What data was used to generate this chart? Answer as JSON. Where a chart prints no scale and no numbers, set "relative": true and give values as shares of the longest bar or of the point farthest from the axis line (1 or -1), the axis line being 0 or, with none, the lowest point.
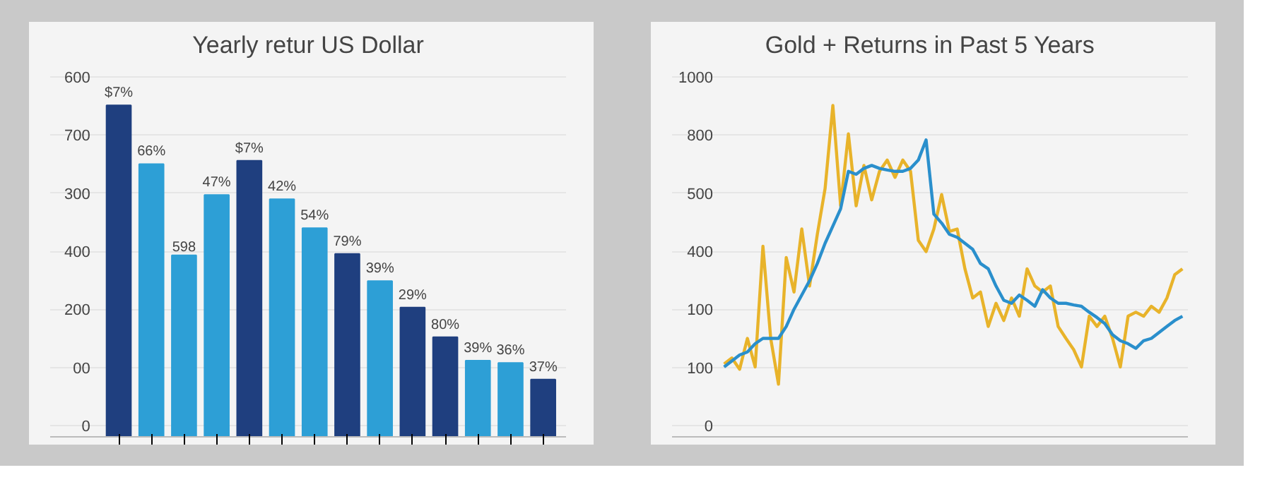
{
  "chart_data": [
    {
      "type": "bar",
      "title": "Yearly retur US Dollar",
      "relative": true,
      "categories": [
        null,
        null,
        null,
        null,
        null,
        null,
        null,
        null,
        null,
        null,
        null,
        null,
        null,
        null
      ],
      "values": [
        1,
        0.823,
        0.548,
        0.73,
        0.833,
        0.717,
        0.63,
        0.552,
        0.47,
        0.39,
        0.301,
        0.23,
        0.223,
        0.173
      ],
      "colors": [
        "#1f3f7f",
        "#2d9fd6",
        "#2d9fd6",
        "#2d9fd6",
        "#1f3f7f",
        "#2d9fd6",
        "#2d9fd6",
        "#1f3f7f",
        "#2d9fd6",
        "#1f3f7f",
        "#1f3f7f",
        "#2d9fd6",
        "#2d9fd6",
        "#1f3f7f"
      ],
      "annotations": [
        "600",
        "700",
        "300",
        "400",
        "200",
        "00",
        "0",
        "$7%",
        "66%",
        "598",
        "47%",
        "$7%",
        "42%",
        "54%",
        "79%",
        "39%",
        "29%",
        "80%",
        "39%",
        "36%",
        "37%"
      ],
      "grid": "y"
    },
    {
      "type": "line",
      "title": "Gold + Returns in Past 5 Years",
      "relative": true,
      "categories": [
        null,
        null,
        null,
        null,
        null,
        null,
        null,
        null,
        null,
        null,
        null,
        null,
        null,
        null,
        null,
        null,
        null,
        null,
        null,
        null,
        null,
        null,
        null,
        null,
        null,
        null,
        null,
        null,
        null,
        null,
        null,
        null,
        null,
        null,
        null,
        null,
        null,
        null,
        null,
        null,
        null,
        null,
        null,
        null,
        null,
        null,
        null,
        null,
        null,
        null,
        null,
        null,
        null,
        null,
        null,
        null,
        null,
        null,
        null,
        null
      ],
      "series": [
        {
          "color": "#e8b32a",
          "values": [
            0.22,
            0.238,
            0.204,
            0.297,
            0.211,
            0.575,
            0.297,
            0.159,
            0.541,
            0.437,
            0.627,
            0.455,
            0.611,
            0.749,
            1,
            0.697,
            0.914,
            0.697,
            0.819,
            0.715,
            0.801,
            0.835,
            0.783,
            0.835,
            0.801,
            0.593,
            0.559,
            0.627,
            0.731,
            0.62,
            0.627,
            0.507,
            0.419,
            0.437,
            0.333,
            0.403,
            0.351,
            0.419,
            0.364,
            0.507,
            0.455,
            0.437,
            0.455,
            0.333,
            0.297,
            0.263,
            0.211,
            0.364,
            0.333,
            0.364,
            0.297,
            0.211,
            0.364,
            0.376,
            0.364,
            0.394,
            0.376,
            0.419,
            0.489,
            0.507
          ]
        },
        {
          "color": "#2a8fcc",
          "values": [
            0.211,
            0.229,
            0.247,
            0.256,
            0.281,
            0.297,
            0.297,
            0.297,
            0.333,
            0.385,
            0.428,
            0.471,
            0.523,
            0.584,
            0.636,
            0.688,
            0.801,
            0.792,
            0.81,
            0.819,
            0.81,
            0.805,
            0.801,
            0.801,
            0.81,
            0.835,
            0.896,
            0.672,
            0.645,
            0.611,
            0.602,
            0.584,
            0.566,
            0.523,
            0.507,
            0.455,
            0.412,
            0.403,
            0.428,
            0.412,
            0.394,
            0.444,
            0.419,
            0.403,
            0.403,
            0.398,
            0.394,
            0.376,
            0.36,
            0.342,
            0.308,
            0.29,
            0.281,
            0.267,
            0.29,
            0.297,
            0.315,
            0.333,
            0.351,
            0.364
          ]
        }
      ],
      "annotations": [
        "1000",
        "800",
        "500",
        "400",
        "100",
        "100",
        "0"
      ],
      "grid": "y"
    }
  ]
}
